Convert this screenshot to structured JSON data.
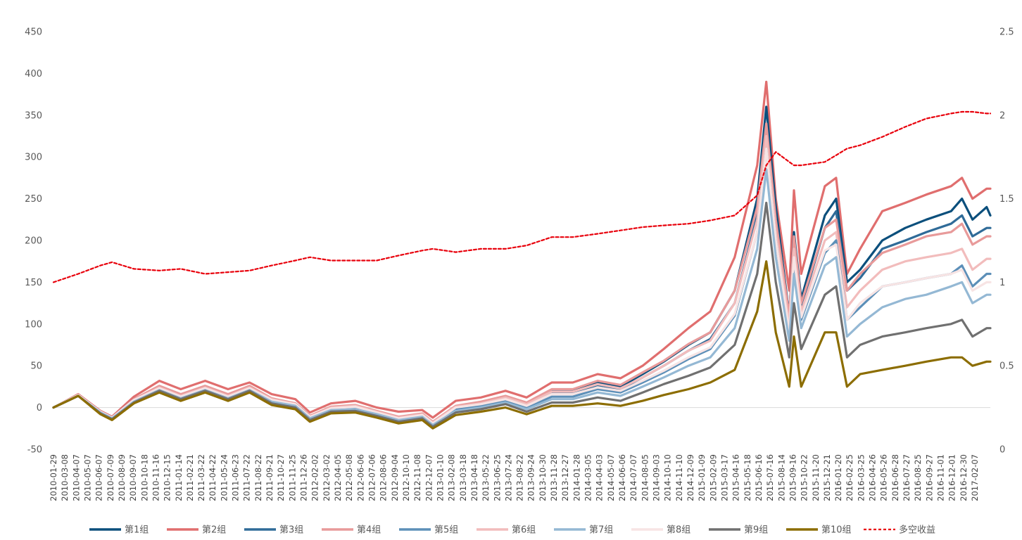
{
  "chart_data": {
    "type": "line",
    "title": "",
    "xlabel": "",
    "ylabel": "",
    "y_left_lim": [
      -50,
      450
    ],
    "y_left_ticks": [
      "-50",
      "0",
      "50",
      "100",
      "150",
      "200",
      "250",
      "300",
      "350",
      "400",
      "450"
    ],
    "y_right_lim": [
      0,
      2.5
    ],
    "y_right_ticks": [
      "0",
      "0.5",
      "1",
      "1.5",
      "2",
      "2.5"
    ],
    "grid": false,
    "legend_position": "bottom",
    "x_tick_labels": [
      "2010-01-29",
      "2010-03-08",
      "2010-04-07",
      "2010-05-07",
      "2010-06-07",
      "2010-07-09",
      "2010-08-09",
      "2010-09-07",
      "2010-10-18",
      "2010-11-16",
      "2010-12-15",
      "2011-01-14",
      "2011-02-21",
      "2011-03-22",
      "2011-04-22",
      "2011-05-24",
      "2011-06-23",
      "2011-07-22",
      "2011-08-22",
      "2011-09-21",
      "2011-10-27",
      "2011-11-25",
      "2011-12-26",
      "2012-02-02",
      "2012-03-02",
      "2012-04-05",
      "2012-05-08",
      "2012-06-06",
      "2012-07-06",
      "2012-08-06",
      "2012-09-04",
      "2012-10-10",
      "2012-11-08",
      "2012-12-07",
      "2013-01-10",
      "2013-02-08",
      "2013-03-18",
      "2013-04-18",
      "2013-05-22",
      "2013-06-25",
      "2013-07-24",
      "2013-08-22",
      "2013-09-24",
      "2013-10-30",
      "2013-11-28",
      "2013-12-27",
      "2014-01-28",
      "2014-03-05",
      "2014-04-03",
      "2014-05-07",
      "2014-06-06",
      "2014-07-07",
      "2014-08-05",
      "2014-09-03",
      "2014-10-10",
      "2014-11-10",
      "2014-12-09",
      "2015-01-09",
      "2015-02-09",
      "2015-03-17",
      "2015-04-16",
      "2015-05-18",
      "2015-06-16",
      "2015-07-16",
      "2015-08-14",
      "2015-09-16",
      "2015-10-22",
      "2015-11-20",
      "2015-12-21",
      "2016-01-20",
      "2016-02-25",
      "2016-03-25",
      "2016-04-26",
      "2016-05-26",
      "2016-06-28",
      "2016-07-27",
      "2016-08-25",
      "2016-09-27",
      "2016-11-01",
      "2016-12-01",
      "2016-12-30",
      "2017-02-07"
    ],
    "x_points": [
      "2010-01-29",
      "2010-04-07",
      "2010-06-07",
      "2010-07-09",
      "2010-09-07",
      "2010-11-16",
      "2011-01-14",
      "2011-03-22",
      "2011-05-24",
      "2011-07-22",
      "2011-09-21",
      "2011-11-25",
      "2012-01-04",
      "2012-03-02",
      "2012-05-08",
      "2012-07-06",
      "2012-09-04",
      "2012-11-08",
      "2012-12-07",
      "2013-02-08",
      "2013-04-18",
      "2013-06-25",
      "2013-08-22",
      "2013-10-30",
      "2013-12-27",
      "2014-03-05",
      "2014-05-07",
      "2014-07-07",
      "2014-09-03",
      "2014-11-10",
      "2015-01-09",
      "2015-03-17",
      "2015-05-18",
      "2015-06-12",
      "2015-07-08",
      "2015-08-14",
      "2015-08-27",
      "2015-09-16",
      "2015-11-20",
      "2015-12-21",
      "2016-01-20",
      "2016-02-25",
      "2016-04-26",
      "2016-06-28",
      "2016-08-25",
      "2016-11-01",
      "2016-12-01",
      "2016-12-30",
      "2017-02-07",
      "2017-02-17"
    ],
    "series": [
      {
        "name": "第1组",
        "color": "#0b4f7c",
        "axis": "left",
        "dashed": false,
        "values": [
          0,
          15,
          -5,
          -12,
          10,
          25,
          15,
          25,
          15,
          25,
          10,
          5,
          -10,
          0,
          2,
          -5,
          -12,
          -8,
          -18,
          0,
          5,
          12,
          5,
          20,
          20,
          30,
          25,
          40,
          55,
          75,
          90,
          140,
          250,
          360,
          240,
          110,
          210,
          130,
          230,
          250,
          150,
          165,
          200,
          215,
          225,
          235,
          250,
          225,
          240,
          230
        ]
      },
      {
        "name": "第2组",
        "color": "#e06e6e",
        "axis": "left",
        "dashed": false,
        "values": [
          0,
          16,
          -4,
          -11,
          13,
          32,
          22,
          32,
          22,
          30,
          16,
          10,
          -6,
          5,
          8,
          0,
          -5,
          -3,
          -12,
          8,
          12,
          20,
          12,
          30,
          30,
          40,
          35,
          50,
          70,
          95,
          115,
          180,
          290,
          390,
          250,
          140,
          260,
          160,
          265,
          275,
          160,
          190,
          235,
          245,
          255,
          265,
          275,
          250,
          262,
          262
        ]
      },
      {
        "name": "第3组",
        "color": "#2f6b98",
        "axis": "left",
        "dashed": false,
        "values": [
          0,
          15,
          -5,
          -12,
          9,
          24,
          14,
          24,
          14,
          24,
          9,
          4,
          -11,
          -1,
          1,
          -6,
          -13,
          -9,
          -19,
          -1,
          4,
          11,
          3,
          17,
          17,
          27,
          22,
          36,
          50,
          68,
          82,
          125,
          230,
          335,
          220,
          100,
          195,
          120,
          215,
          235,
          140,
          155,
          190,
          200,
          210,
          220,
          230,
          205,
          215,
          215
        ]
      },
      {
        "name": "第4组",
        "color": "#e89a9a",
        "axis": "left",
        "dashed": false,
        "values": [
          0,
          15,
          -5,
          -12,
          10,
          26,
          16,
          26,
          16,
          26,
          11,
          5,
          -10,
          1,
          3,
          -4,
          -11,
          -7,
          -17,
          2,
          7,
          14,
          6,
          22,
          22,
          32,
          27,
          42,
          56,
          76,
          90,
          140,
          240,
          340,
          225,
          110,
          205,
          125,
          215,
          225,
          140,
          160,
          185,
          195,
          205,
          210,
          220,
          195,
          205,
          205
        ]
      },
      {
        "name": "第5组",
        "color": "#5c8fb8",
        "axis": "left",
        "dashed": false,
        "values": [
          0,
          14,
          -6,
          -13,
          8,
          22,
          12,
          22,
          12,
          22,
          8,
          3,
          -12,
          -2,
          0,
          -7,
          -14,
          -10,
          -20,
          -3,
          2,
          8,
          0,
          13,
          13,
          22,
          18,
          30,
          42,
          58,
          70,
          110,
          210,
          310,
          200,
          90,
          175,
          105,
          185,
          200,
          105,
          120,
          145,
          150,
          155,
          160,
          170,
          145,
          160,
          160
        ]
      },
      {
        "name": "第6组",
        "color": "#f2bcbc",
        "axis": "left",
        "dashed": false,
        "values": [
          0,
          15,
          -5,
          -12,
          9,
          24,
          14,
          24,
          14,
          24,
          10,
          4,
          -11,
          0,
          2,
          -5,
          -12,
          -8,
          -18,
          1,
          5,
          12,
          4,
          19,
          19,
          28,
          23,
          36,
          50,
          68,
          80,
          125,
          225,
          325,
          210,
          100,
          190,
          115,
          200,
          210,
          120,
          140,
          165,
          175,
          180,
          185,
          190,
          165,
          178,
          178
        ]
      },
      {
        "name": "第7组",
        "color": "#94b8d4",
        "axis": "left",
        "dashed": false,
        "values": [
          0,
          14,
          -6,
          -13,
          7,
          21,
          11,
          21,
          11,
          21,
          7,
          2,
          -13,
          -3,
          -2,
          -8,
          -15,
          -11,
          -21,
          -4,
          0,
          6,
          -2,
          10,
          10,
          18,
          14,
          25,
          36,
          50,
          60,
          95,
          190,
          285,
          180,
          80,
          160,
          95,
          170,
          180,
          85,
          100,
          120,
          130,
          135,
          145,
          150,
          125,
          135,
          135
        ]
      },
      {
        "name": "第8组",
        "color": "#f7e4e4",
        "axis": "left",
        "dashed": false,
        "values": [
          0,
          15,
          -5,
          -12,
          9,
          23,
          13,
          23,
          13,
          23,
          9,
          4,
          -11,
          -1,
          1,
          -6,
          -13,
          -9,
          -19,
          0,
          4,
          10,
          2,
          16,
          16,
          24,
          20,
          32,
          44,
          60,
          72,
          112,
          210,
          310,
          200,
          92,
          180,
          108,
          188,
          195,
          105,
          125,
          145,
          150,
          155,
          160,
          165,
          140,
          150,
          150
        ]
      },
      {
        "name": "第9组",
        "color": "#707070",
        "axis": "left",
        "dashed": false,
        "values": [
          0,
          14,
          -7,
          -14,
          6,
          20,
          10,
          20,
          10,
          20,
          5,
          0,
          -15,
          -5,
          -4,
          -10,
          -17,
          -13,
          -23,
          -6,
          -2,
          4,
          -5,
          6,
          6,
          12,
          8,
          18,
          28,
          38,
          48,
          75,
          160,
          245,
          150,
          60,
          125,
          70,
          135,
          145,
          60,
          75,
          85,
          90,
          95,
          100,
          105,
          85,
          95,
          95
        ]
      },
      {
        "name": "第10组",
        "color": "#8c6d00",
        "axis": "left",
        "dashed": false,
        "values": [
          0,
          14,
          -8,
          -15,
          5,
          18,
          8,
          18,
          8,
          18,
          3,
          -2,
          -17,
          -7,
          -6,
          -12,
          -19,
          -15,
          -25,
          -9,
          -5,
          0,
          -8,
          2,
          2,
          5,
          2,
          8,
          15,
          22,
          30,
          45,
          115,
          175,
          90,
          25,
          85,
          25,
          90,
          90,
          25,
          40,
          45,
          50,
          55,
          60,
          60,
          50,
          55,
          55
        ]
      },
      {
        "name": "多空收益",
        "color": "#e8000b",
        "axis": "right",
        "dashed": true,
        "values": [
          1.0,
          1.05,
          1.1,
          1.12,
          1.08,
          1.07,
          1.08,
          1.05,
          1.06,
          1.07,
          1.1,
          1.13,
          1.15,
          1.13,
          1.13,
          1.13,
          1.16,
          1.19,
          1.2,
          1.18,
          1.2,
          1.2,
          1.22,
          1.27,
          1.27,
          1.29,
          1.31,
          1.33,
          1.34,
          1.35,
          1.37,
          1.4,
          1.52,
          1.7,
          1.78,
          1.72,
          1.7,
          1.7,
          1.72,
          1.76,
          1.8,
          1.82,
          1.87,
          1.93,
          1.98,
          2.01,
          2.02,
          2.02,
          2.01,
          2.01
        ]
      }
    ]
  }
}
